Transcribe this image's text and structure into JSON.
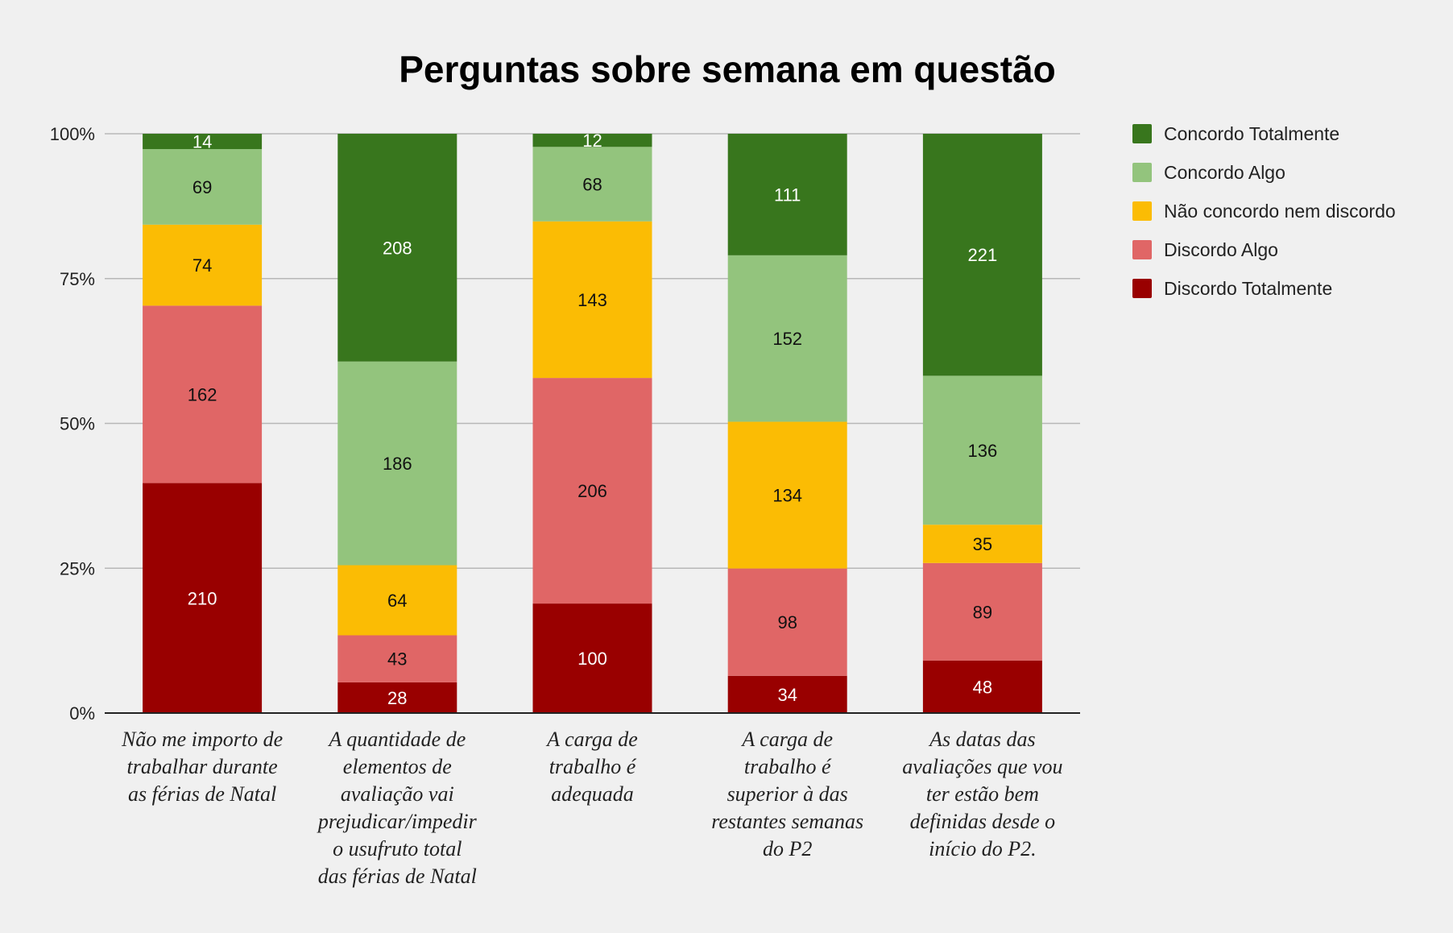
{
  "chart_data": {
    "type": "bar",
    "stacked": "percent",
    "title": "Perguntas sobre semana em questão",
    "xlabel": "",
    "ylabel": "",
    "ylim": [
      0,
      100
    ],
    "y_ticks": [
      "0%",
      "25%",
      "50%",
      "75%",
      "100%"
    ],
    "grid": true,
    "legend_position": "right",
    "categories": [
      [
        "Não me importo de",
        "trabalhar durante",
        "as férias de Natal"
      ],
      [
        "A quantidade de",
        "elementos de",
        "avaliação vai",
        "prejudicar/impedir",
        "o usufruto total",
        "das férias de Natal"
      ],
      [
        "A carga de",
        "trabalho é",
        "adequada"
      ],
      [
        "A carga de",
        "trabalho é",
        "superior à das",
        "restantes semanas",
        "do P2"
      ],
      [
        "As datas das",
        "avaliações que vou",
        "ter estão bem",
        "definidas desde o",
        "início do P2."
      ]
    ],
    "series": [
      {
        "name": "Discordo Totalmente",
        "color": "#990000",
        "label_color": "#ffffff",
        "values": [
          210,
          28,
          100,
          34,
          48
        ]
      },
      {
        "name": "Discordo Algo",
        "color": "#e06666",
        "label_color": "#111111",
        "values": [
          162,
          43,
          206,
          98,
          89
        ]
      },
      {
        "name": "Não concordo nem discordo",
        "color": "#fbbc04",
        "label_color": "#111111",
        "values": [
          74,
          64,
          143,
          134,
          35
        ]
      },
      {
        "name": "Concordo Algo",
        "color": "#93c47d",
        "label_color": "#111111",
        "values": [
          69,
          186,
          68,
          152,
          136
        ]
      },
      {
        "name": "Concordo Totalmente",
        "color": "#38761d",
        "label_color": "#ffffff",
        "values": [
          14,
          208,
          12,
          111,
          221
        ]
      }
    ]
  }
}
